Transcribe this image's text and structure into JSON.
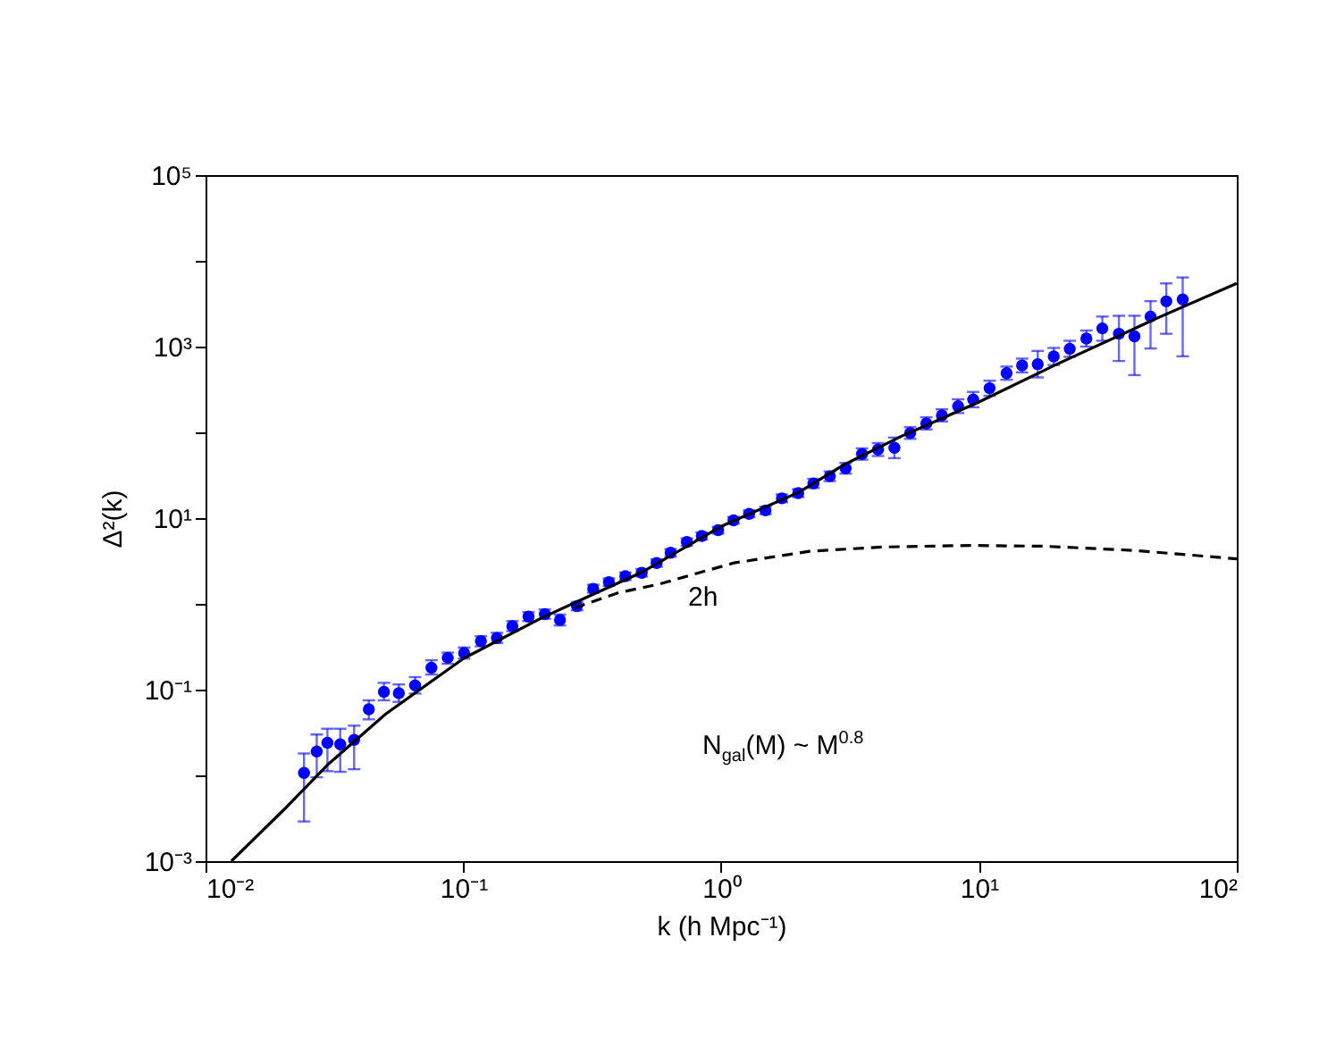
{
  "chart_data": {
    "type": "scatter",
    "xlabel": "k (h Mpc⁻¹)",
    "ylabel": "Δ²(k)",
    "log": "xy",
    "grid": false,
    "marker": "circle",
    "xlim": [
      0.01,
      100
    ],
    "ylim": [
      0.001,
      100000
    ],
    "xticks": [
      {
        "value": 0.01,
        "label": "10⁻²"
      },
      {
        "value": 0.1,
        "label": "10⁻¹"
      },
      {
        "value": 1,
        "label": "10⁰"
      },
      {
        "value": 10,
        "label": "10¹"
      },
      {
        "value": 100,
        "label": "10²"
      }
    ],
    "yticks": [
      {
        "value": 0.001,
        "label": "10⁻³"
      },
      {
        "value": 0.01,
        "label": null
      },
      {
        "value": 0.1,
        "label": "10⁻¹"
      },
      {
        "value": 1,
        "label": null
      },
      {
        "value": 10,
        "label": "10¹"
      },
      {
        "value": 100,
        "label": null
      },
      {
        "value": 1000,
        "label": "10³"
      },
      {
        "value": 10000,
        "label": null
      },
      {
        "value": 100000,
        "label": "10⁵"
      }
    ],
    "annotations": [
      "2h",
      "N$_{gal}$(M) ~ M$^{0.8}$"
    ],
    "series": [
      {
        "color": "#0000ff",
        "x": [
          0.0241,
          0.027,
          0.0297,
          0.0333,
          0.0377,
          0.043,
          0.0492,
          0.0562,
          0.065,
          0.0752,
          0.087,
          0.1007,
          0.117,
          0.135,
          0.155,
          0.179,
          0.207,
          0.237,
          0.276,
          0.319,
          0.367,
          0.425,
          0.492,
          0.562,
          0.637,
          0.736,
          0.841,
          0.973,
          1.117,
          1.284,
          1.486,
          1.72,
          1.99,
          2.28,
          2.64,
          3.04,
          3.52,
          4.06,
          4.7,
          5.41,
          6.25,
          7.18,
          8.3,
          9.5,
          11.0,
          12.8,
          14.7,
          16.9,
          19.5,
          22.5,
          26.1,
          30.1,
          34.9,
          40.1,
          46.3,
          53.3,
          61.7
        ],
        "values": [
          0.0107,
          0.019,
          0.024,
          0.023,
          0.026,
          0.059,
          0.094,
          0.091,
          0.112,
          0.18,
          0.235,
          0.267,
          0.368,
          0.4,
          0.55,
          0.71,
          0.76,
          0.65,
          0.94,
          1.5,
          1.79,
          2.1,
          2.3,
          3.0,
          3.94,
          5.26,
          6.18,
          7.24,
          9.4,
          11.2,
          12.3,
          17,
          19.6,
          25.4,
          30.8,
          38,
          56,
          63,
          66,
          98,
          127,
          158,
          202,
          241,
          327,
          490,
          603,
          624,
          767,
          944,
          1240,
          1630,
          1413,
          1320,
          2240,
          3370,
          3550
        ],
        "errors": [
          [
            0.0029,
            0.018
          ],
          [
            0.0095,
            0.03
          ],
          [
            0.0112,
            0.035
          ],
          [
            0.011,
            0.035
          ],
          [
            0.0118,
            0.038
          ],
          [
            0.045,
            0.075
          ],
          [
            0.075,
            0.12
          ],
          [
            0.072,
            0.115
          ],
          [
            0.09,
            0.14
          ],
          [
            0.15,
            0.22
          ],
          [
            0.2,
            0.27
          ],
          [
            0.23,
            0.31
          ],
          [
            0.32,
            0.42
          ],
          [
            0.35,
            0.46
          ],
          [
            0.48,
            0.63
          ],
          [
            0.63,
            0.8
          ],
          [
            0.67,
            0.86
          ],
          [
            0.56,
            0.75
          ],
          [
            0.84,
            1.05
          ],
          [
            1.35,
            1.67
          ],
          [
            1.62,
            1.98
          ],
          [
            1.9,
            2.32
          ],
          [
            2.08,
            2.55
          ],
          [
            2.7,
            3.3
          ],
          [
            3.55,
            4.35
          ],
          [
            4.75,
            5.8
          ],
          [
            5.6,
            6.8
          ],
          [
            6.6,
            7.9
          ],
          [
            8.6,
            10.3
          ],
          [
            10.2,
            12.3
          ],
          [
            11.1,
            13.6
          ],
          [
            15.3,
            18.9
          ],
          [
            17.6,
            21.8
          ],
          [
            22.5,
            28.7
          ],
          [
            27,
            35
          ],
          [
            33,
            44
          ],
          [
            48,
            65
          ],
          [
            53,
            75
          ],
          [
            50,
            87
          ],
          [
            84,
            115
          ],
          [
            108,
            150
          ],
          [
            134,
            186
          ],
          [
            168,
            243
          ],
          [
            196,
            296
          ],
          [
            267,
            400
          ],
          [
            410,
            585
          ],
          [
            500,
            725
          ],
          [
            437,
            890
          ],
          [
            610,
            965
          ],
          [
            760,
            1170
          ],
          [
            1000,
            1540
          ],
          [
            1170,
            2240
          ],
          [
            680,
            2290
          ],
          [
            465,
            2290
          ],
          [
            950,
            3390
          ],
          [
            1410,
            5460
          ],
          [
            770,
            6400
          ]
        ]
      },
      {
        "type": "line",
        "color": "#000000",
        "line_style": "solid",
        "marker": "none",
        "x": [
          0.0126,
          0.02,
          0.03,
          0.05,
          0.1,
          0.2,
          0.3,
          0.5,
          1,
          2,
          3,
          5,
          10,
          20,
          50,
          100
        ],
        "values": [
          0.001,
          0.0039,
          0.0136,
          0.052,
          0.23,
          0.68,
          1.19,
          2.39,
          8,
          20,
          42,
          90,
          226,
          620,
          2200,
          5460
        ]
      },
      {
        "type": "line",
        "color": "#000000",
        "line_style": "dashed",
        "marker": "none",
        "x": [
          0.27,
          0.4,
          0.575,
          1.12,
          2.2,
          4.2,
          9.3,
          17.9,
          40,
          100
        ],
        "values": [
          0.9,
          1.35,
          1.7,
          3.0,
          4.1,
          4.6,
          4.8,
          4.7,
          4.2,
          3.35
        ]
      }
    ]
  }
}
